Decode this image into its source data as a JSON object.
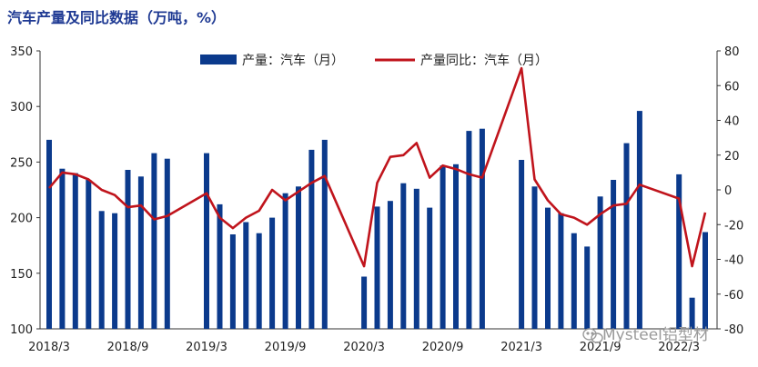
{
  "chart_data": {
    "type": "bar",
    "title": "汽车产量及同比数据（万吨，%）",
    "x": [
      "2018/3",
      "2018/4",
      "2018/5",
      "2018/6",
      "2018/7",
      "2018/8",
      "2018/9",
      "2018/10",
      "2018/11",
      "2018/12",
      "2019/1",
      "2019/2",
      "2019/3",
      "2019/4",
      "2019/5",
      "2019/6",
      "2019/7",
      "2019/8",
      "2019/9",
      "2019/10",
      "2019/11",
      "2019/12",
      "2020/1",
      "2020/2",
      "2020/3",
      "2020/4",
      "2020/5",
      "2020/6",
      "2020/7",
      "2020/8",
      "2020/9",
      "2020/10",
      "2020/11",
      "2020/12",
      "2021/1",
      "2021/2",
      "2021/3",
      "2021/4",
      "2021/5",
      "2021/6",
      "2021/7",
      "2021/8",
      "2021/9",
      "2021/10",
      "2021/11",
      "2021/12",
      "2022/1",
      "2022/2",
      "2022/3",
      "2022/4",
      "2022/5"
    ],
    "x_tick_labels": [
      "2018/3",
      "2018/9",
      "2019/3",
      "2019/9",
      "2020/3",
      "2020/9",
      "2021/3",
      "2021/9",
      "2022/3"
    ],
    "series": [
      {
        "name": "产量：汽车（月）",
        "axis": "left",
        "type": "bar",
        "color": "#0b3a8c",
        "values": [
          270,
          244,
          240,
          234,
          206,
          204,
          243,
          237,
          258,
          253,
          null,
          null,
          258,
          212,
          185,
          196,
          186,
          200,
          222,
          228,
          261,
          270,
          null,
          null,
          147,
          210,
          215,
          231,
          226,
          209,
          247,
          248,
          278,
          280,
          null,
          null,
          252,
          228,
          209,
          204,
          186,
          174,
          219,
          234,
          267,
          296,
          null,
          null,
          239,
          128,
          187
        ]
      },
      {
        "name": "产量同比：汽车（月）",
        "axis": "right",
        "type": "line",
        "color": "#c0141c",
        "values": [
          1,
          10,
          9,
          6,
          0,
          -3,
          -10,
          -9,
          -17,
          -15,
          null,
          null,
          -2,
          -16,
          -22,
          -16,
          -12,
          0,
          -6,
          -1,
          4,
          8,
          null,
          null,
          -44,
          4,
          19,
          20,
          27,
          7,
          14,
          12,
          9,
          7,
          null,
          null,
          70,
          6,
          -6,
          -14,
          -16,
          -20,
          -14,
          -9,
          -8,
          3,
          null,
          null,
          -5,
          -44,
          -13
        ]
      }
    ],
    "ylim_left": [
      100,
      350
    ],
    "yticks_left": [
      "100",
      "150",
      "200",
      "250",
      "300",
      "350"
    ],
    "ylim_right": [
      -80,
      80
    ],
    "yticks_right": [
      "-80",
      "-60",
      "-40",
      "-20",
      "0",
      "20",
      "40",
      "60",
      "80"
    ],
    "legend": {
      "position": "top-center"
    },
    "grid": false,
    "watermark": "Mysteel铝型材"
  }
}
